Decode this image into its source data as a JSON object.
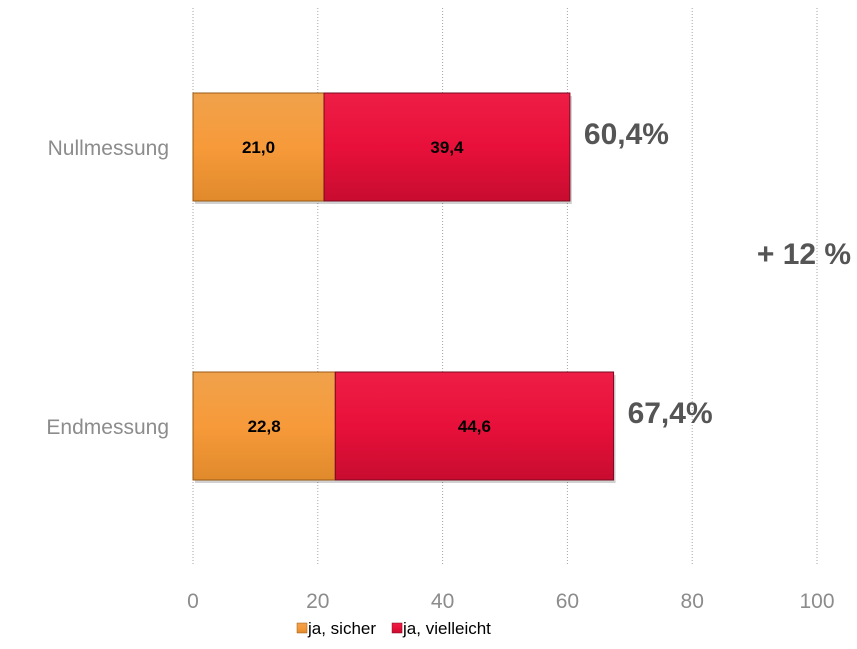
{
  "chart_data": {
    "type": "bar",
    "orientation": "horizontal",
    "stacked": true,
    "categories": [
      "Nullmessung",
      "Endmessung"
    ],
    "series": [
      {
        "name": "ja, sicher",
        "values": [
          21.0,
          22.8
        ],
        "labels": [
          "21,0",
          "22,8"
        ],
        "color": "#F79A3A"
      },
      {
        "name": "ja, vielleicht",
        "values": [
          39.4,
          44.6
        ],
        "labels": [
          "39,4",
          "44,6"
        ],
        "color": "#E8103A"
      }
    ],
    "totals": [
      "60,4%",
      "67,4%"
    ],
    "annotation": "+ 12 %",
    "xlim": [
      0,
      100
    ],
    "xticks": [
      0,
      20,
      40,
      60,
      80,
      100
    ],
    "xtick_labels": [
      "0",
      "20",
      "40",
      "60",
      "80",
      "100"
    ],
    "grid": "vertical dotted",
    "legend_position": "bottom"
  }
}
